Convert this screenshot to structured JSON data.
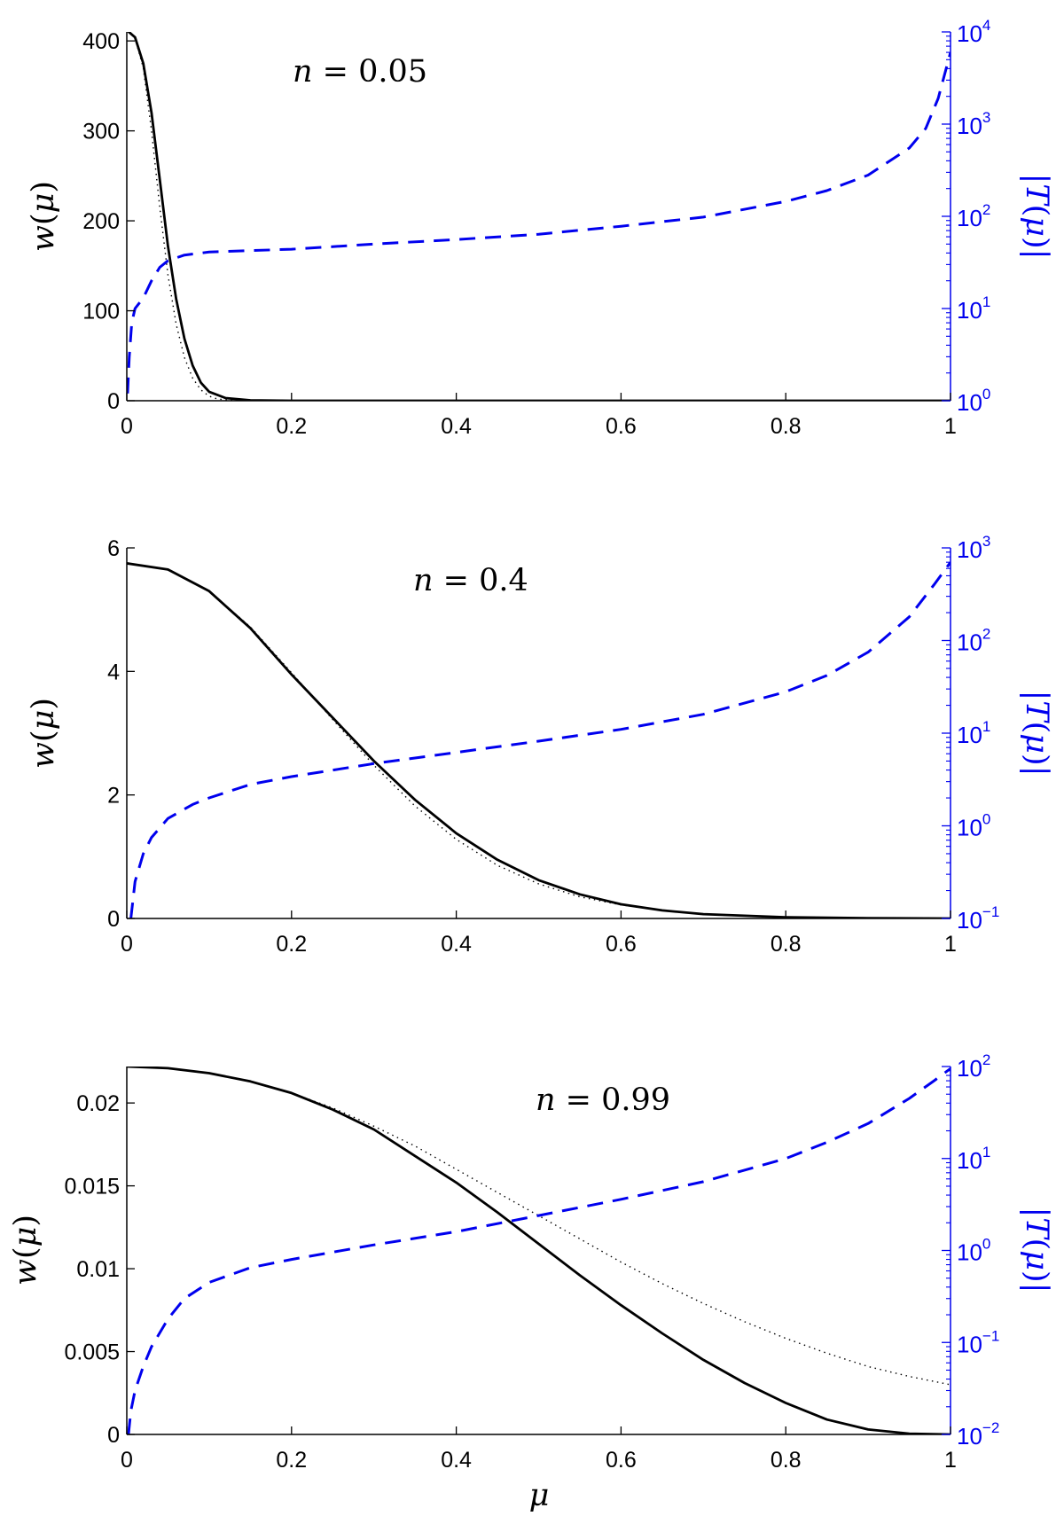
{
  "chart_data": [
    {
      "type": "line",
      "annotation": "n = 0.05",
      "annotation_parts": {
        "var": "n",
        "eq": " = ",
        "value": "0.05"
      },
      "xlabel": "",
      "ylabel": "w(μ)",
      "ylabel_parts": {
        "func": "w",
        "open": "(",
        "arg": "μ",
        "close": ")"
      },
      "ylabel_right": "|T(μ)|",
      "ylabel_right_parts": {
        "bar1": "|",
        "func": "T",
        "open": "(",
        "arg": "μ",
        "close": ")",
        "bar2": "|"
      },
      "xlim": [
        0,
        1
      ],
      "ylim": [
        0,
        410
      ],
      "xticks": [
        0,
        0.2,
        0.4,
        0.6,
        0.8,
        1
      ],
      "xtick_labels": [
        "0",
        "0.2",
        "0.4",
        "0.6",
        "0.8",
        "1"
      ],
      "yticks": [
        0,
        100,
        200,
        300,
        400
      ],
      "ytick_labels": [
        "0",
        "100",
        "200",
        "300",
        "400"
      ],
      "y2_scale": "log",
      "y2lim": [
        1,
        10000
      ],
      "y2ticks": [
        1,
        10,
        100,
        1000,
        10000
      ],
      "y2tick_labels": [
        {
          "base": "10",
          "exp": "0"
        },
        {
          "base": "10",
          "exp": "1"
        },
        {
          "base": "10",
          "exp": "2"
        },
        {
          "base": "10",
          "exp": "3"
        },
        {
          "base": "10",
          "exp": "4"
        }
      ],
      "series": [
        {
          "style": "solid",
          "axis": "left",
          "color": "#000000",
          "x": [
            0,
            0.01,
            0.02,
            0.03,
            0.04,
            0.05,
            0.06,
            0.07,
            0.08,
            0.09,
            0.1,
            0.12,
            0.15,
            0.2,
            0.3,
            0.4,
            0.6,
            0.8,
            1.0
          ],
          "y": [
            412,
            404,
            375,
            320,
            246,
            172,
            113,
            69,
            39,
            20,
            10,
            3,
            0.5,
            0,
            0,
            0,
            0,
            0,
            0
          ]
        },
        {
          "style": "dotted",
          "axis": "left",
          "color": "#000000",
          "x": [
            0,
            0.01,
            0.02,
            0.03,
            0.04,
            0.05,
            0.06,
            0.07,
            0.08,
            0.09,
            0.1,
            0.11,
            0.12,
            0.14,
            0.2,
            1.0
          ],
          "y": [
            412,
            403,
            370,
            300,
            215,
            140,
            85,
            48,
            25,
            12,
            5,
            2,
            1,
            0,
            0,
            0
          ]
        },
        {
          "style": "dashed",
          "axis": "right",
          "color": "#0000ee",
          "x": [
            0.001,
            0.003,
            0.006,
            0.01,
            0.02,
            0.03,
            0.04,
            0.05,
            0.07,
            0.1,
            0.2,
            0.3,
            0.4,
            0.5,
            0.6,
            0.7,
            0.8,
            0.85,
            0.9,
            0.95,
            0.97,
            0.985,
            1.0
          ],
          "y": [
            1.2,
            3,
            7,
            10,
            13,
            20,
            28,
            33,
            38,
            41,
            44,
            50,
            56,
            64,
            78,
            98,
            145,
            190,
            280,
            550,
            900,
            1900,
            6000
          ]
        }
      ]
    },
    {
      "type": "line",
      "annotation": "n = 0.4",
      "annotation_parts": {
        "var": "n",
        "eq": " = ",
        "value": "0.4"
      },
      "xlabel": "",
      "ylabel": "w(μ)",
      "ylabel_parts": {
        "func": "w",
        "open": "(",
        "arg": "μ",
        "close": ")"
      },
      "ylabel_right": "|T(μ)|",
      "ylabel_right_parts": {
        "bar1": "|",
        "func": "T",
        "open": "(",
        "arg": "μ",
        "close": ")",
        "bar2": "|"
      },
      "xlim": [
        0,
        1
      ],
      "ylim": [
        0,
        6
      ],
      "xticks": [
        0,
        0.2,
        0.4,
        0.6,
        0.8,
        1
      ],
      "xtick_labels": [
        "0",
        "0.2",
        "0.4",
        "0.6",
        "0.8",
        "1"
      ],
      "yticks": [
        0,
        2,
        4,
        6
      ],
      "ytick_labels": [
        "0",
        "2",
        "4",
        "6"
      ],
      "y2_scale": "log",
      "y2lim": [
        0.1,
        1000
      ],
      "y2ticks": [
        0.1,
        1,
        10,
        100,
        1000
      ],
      "y2tick_labels": [
        {
          "base": "10",
          "exp": "−1"
        },
        {
          "base": "10",
          "exp": "0"
        },
        {
          "base": "10",
          "exp": "1"
        },
        {
          "base": "10",
          "exp": "2"
        },
        {
          "base": "10",
          "exp": "3"
        }
      ],
      "series": [
        {
          "style": "solid",
          "axis": "left",
          "color": "#000000",
          "x": [
            0,
            0.05,
            0.1,
            0.15,
            0.2,
            0.25,
            0.3,
            0.35,
            0.4,
            0.45,
            0.5,
            0.55,
            0.6,
            0.65,
            0.7,
            0.8,
            0.9,
            1.0
          ],
          "y": [
            5.75,
            5.65,
            5.3,
            4.7,
            3.95,
            3.25,
            2.55,
            1.92,
            1.38,
            0.95,
            0.62,
            0.39,
            0.23,
            0.13,
            0.07,
            0.02,
            0.005,
            0
          ]
        },
        {
          "style": "dotted",
          "axis": "left",
          "color": "#000000",
          "x": [
            0,
            0.05,
            0.1,
            0.15,
            0.2,
            0.25,
            0.3,
            0.35,
            0.4,
            0.45,
            0.5,
            0.55,
            0.6,
            0.65,
            0.7,
            0.8,
            0.9,
            1.0
          ],
          "y": [
            5.75,
            5.65,
            5.3,
            4.72,
            3.98,
            3.22,
            2.48,
            1.82,
            1.28,
            0.86,
            0.56,
            0.35,
            0.22,
            0.13,
            0.07,
            0.02,
            0.005,
            0
          ]
        },
        {
          "style": "dashed",
          "axis": "right",
          "color": "#0000ee",
          "x": [
            0.005,
            0.01,
            0.02,
            0.03,
            0.05,
            0.08,
            0.1,
            0.15,
            0.2,
            0.3,
            0.4,
            0.5,
            0.6,
            0.7,
            0.8,
            0.85,
            0.9,
            0.95,
            0.98,
            1.0
          ],
          "y": [
            0.1,
            0.25,
            0.5,
            0.75,
            1.2,
            1.7,
            2.0,
            2.8,
            3.4,
            4.7,
            6.2,
            8.2,
            11,
            16,
            28,
            42,
            75,
            180,
            400,
            700
          ]
        }
      ]
    },
    {
      "type": "line",
      "annotation": "n = 0.99",
      "annotation_parts": {
        "var": "n",
        "eq": " = ",
        "value": "0.99"
      },
      "xlabel": "μ",
      "ylabel": "w(μ)",
      "ylabel_parts": {
        "func": "w",
        "open": "(",
        "arg": "μ",
        "close": ")"
      },
      "ylabel_right": "|T(μ)|",
      "ylabel_right_parts": {
        "bar1": "|",
        "func": "T",
        "open": "(",
        "arg": "μ",
        "close": ")",
        "bar2": "|"
      },
      "xlim": [
        0,
        1
      ],
      "ylim": [
        0,
        0.0222
      ],
      "xticks": [
        0,
        0.2,
        0.4,
        0.6,
        0.8,
        1
      ],
      "xtick_labels": [
        "0",
        "0.2",
        "0.4",
        "0.6",
        "0.8",
        "1"
      ],
      "yticks": [
        0,
        0.005,
        0.01,
        0.015,
        0.02
      ],
      "ytick_labels": [
        "0",
        "0.005",
        "0.01",
        "0.015",
        "0.02"
      ],
      "y2_scale": "log",
      "y2lim": [
        0.01,
        100
      ],
      "y2ticks": [
        0.01,
        0.1,
        1,
        10,
        100
      ],
      "y2tick_labels": [
        {
          "base": "10",
          "exp": "−2"
        },
        {
          "base": "10",
          "exp": "−1"
        },
        {
          "base": "10",
          "exp": "0"
        },
        {
          "base": "10",
          "exp": "1"
        },
        {
          "base": "10",
          "exp": "2"
        }
      ],
      "series": [
        {
          "style": "solid",
          "axis": "left",
          "color": "#000000",
          "x": [
            0,
            0.05,
            0.1,
            0.15,
            0.2,
            0.25,
            0.3,
            0.35,
            0.4,
            0.45,
            0.5,
            0.55,
            0.6,
            0.65,
            0.7,
            0.75,
            0.8,
            0.85,
            0.9,
            0.95,
            1.0
          ],
          "y": [
            0.0222,
            0.0221,
            0.0218,
            0.0213,
            0.0206,
            0.0196,
            0.0184,
            0.0168,
            0.0152,
            0.0134,
            0.0115,
            0.0096,
            0.0078,
            0.0061,
            0.0045,
            0.0031,
            0.0019,
            0.0009,
            0.0003,
            5e-05,
            0
          ]
        },
        {
          "style": "dotted",
          "axis": "left",
          "color": "#000000",
          "x": [
            0,
            0.05,
            0.1,
            0.15,
            0.2,
            0.25,
            0.3,
            0.35,
            0.4,
            0.45,
            0.5,
            0.55,
            0.6,
            0.65,
            0.7,
            0.75,
            0.8,
            0.85,
            0.9,
            0.95,
            1.0
          ],
          "y": [
            0.0222,
            0.0221,
            0.0218,
            0.0213,
            0.0206,
            0.0197,
            0.0186,
            0.0174,
            0.016,
            0.0146,
            0.0132,
            0.0118,
            0.0104,
            0.0091,
            0.0079,
            0.0068,
            0.0058,
            0.0049,
            0.0041,
            0.0035,
            0.003
          ]
        },
        {
          "style": "dashed",
          "axis": "right",
          "color": "#0000ee",
          "x": [
            0.002,
            0.005,
            0.01,
            0.02,
            0.03,
            0.05,
            0.07,
            0.1,
            0.15,
            0.2,
            0.3,
            0.4,
            0.5,
            0.6,
            0.7,
            0.8,
            0.85,
            0.9,
            0.95,
            0.98,
            1.0
          ],
          "y": [
            0.01,
            0.018,
            0.03,
            0.055,
            0.09,
            0.18,
            0.3,
            0.45,
            0.65,
            0.8,
            1.15,
            1.6,
            2.4,
            3.6,
            5.6,
            10,
            15,
            24,
            45,
            70,
            95
          ]
        }
      ]
    }
  ]
}
